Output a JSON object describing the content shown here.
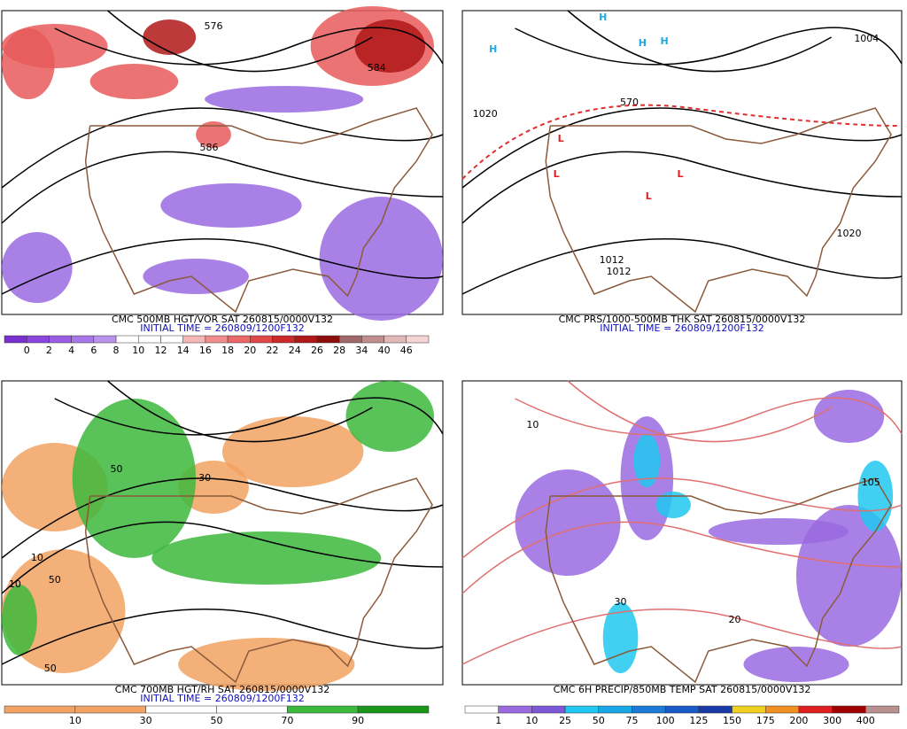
{
  "panels": [
    {
      "title": "CMC 500MB HGT/VOR SAT 260815/0000V132",
      "initial_time": "INITIAL TIME = 260809/1200F132",
      "colorbar": {
        "labels": [
          0,
          2,
          4,
          6,
          8,
          10,
          12,
          14,
          16,
          18,
          20,
          22,
          24,
          26,
          28,
          34,
          40,
          46
        ],
        "colors": [
          "#7a2fd0",
          "#8a45dc",
          "#9a5ee4",
          "#a878e8",
          "#b993ec",
          "#ffffff",
          "#ffffff",
          "#ffffff",
          "#f5b6b6",
          "#f08e8e",
          "#ea6868",
          "#e04848",
          "#cc2a2a",
          "#b01818",
          "#8e0c0c",
          "#a06868",
          "#c08e8e",
          "#e0b8b8",
          "#f6d4d4"
        ]
      },
      "map_labels": [
        "576",
        "584",
        "586"
      ]
    },
    {
      "title": "CMC PRS/1000-500MB THK SAT 260815/0000V132",
      "initial_time": "INITIAL TIME = 260809/1200F132",
      "map_labels": [
        "H",
        "H",
        "H",
        "H",
        "L",
        "L",
        "L",
        "L",
        "1020",
        "1020",
        "1012",
        "1012",
        "1004",
        "570"
      ]
    },
    {
      "title": "CMC 700MB HGT/RH SAT 260815/0000V132",
      "initial_time": "INITIAL TIME = 260809/1200F132",
      "colorbar": {
        "labels": [
          10,
          30,
          50,
          70,
          90
        ],
        "colors": [
          "#f2a262",
          "#f2a262",
          "#ffffff",
          "#ffffff",
          "#3cb83c",
          "#1a961a"
        ]
      },
      "map_labels": [
        "50",
        "50",
        "30",
        "10",
        "10",
        "50"
      ]
    },
    {
      "title": "CMC 6H PRECIP/850MB TEMP SAT 260815/0000V132",
      "colorbar": {
        "labels": [
          1,
          10,
          25,
          50,
          75,
          100,
          125,
          150,
          175,
          200,
          300,
          400
        ],
        "colors": [
          "#ffffff",
          "#9a6ae0",
          "#7e56d8",
          "#20c8f0",
          "#18a8e8",
          "#1a7ad8",
          "#1a5ac8",
          "#1a3aa8",
          "#f0d020",
          "#f09020",
          "#e02020",
          "#a00000",
          "#b89090"
        ]
      },
      "map_labels": [
        "10",
        "20",
        "30",
        "105"
      ]
    }
  ]
}
